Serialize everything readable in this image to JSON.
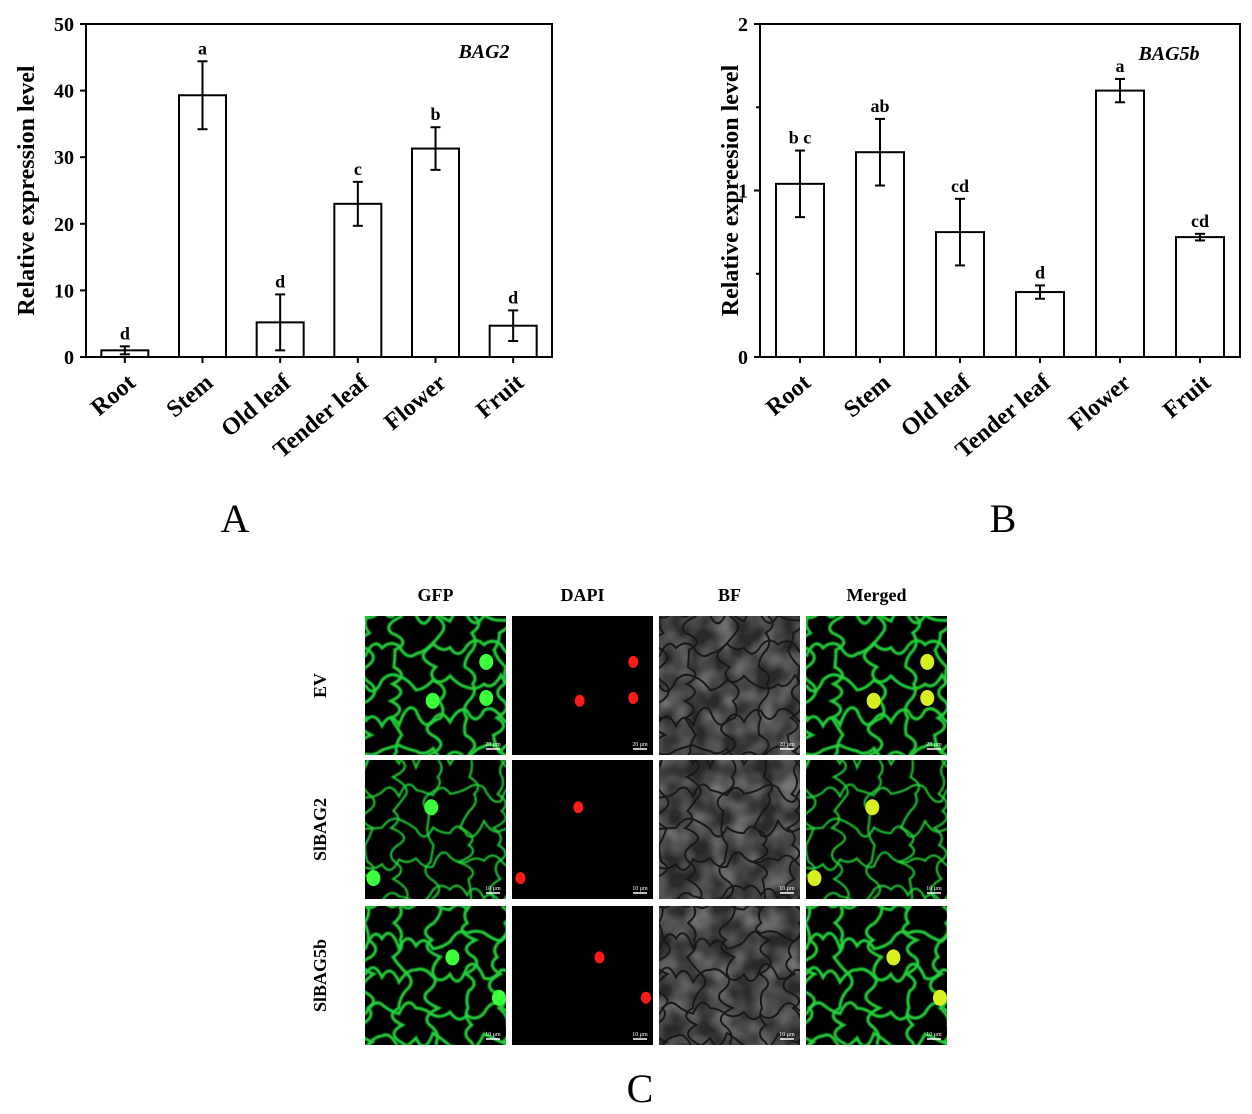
{
  "chart_data": [
    {
      "type": "bar",
      "panel_label": "A",
      "gene_label": "BAG2",
      "ylabel": "Relative expression level",
      "xlabel": "",
      "ylim": [
        0,
        50
      ],
      "yticks": [
        0,
        10,
        20,
        30,
        40,
        50
      ],
      "categories": [
        "Root",
        "Stem",
        "Old leaf",
        "Tender leaf",
        "Flower",
        "Fruit"
      ],
      "values": [
        1.0,
        39.3,
        5.2,
        23.0,
        31.3,
        4.7
      ],
      "errors": [
        0.6,
        5.1,
        4.2,
        3.3,
        3.2,
        2.3
      ],
      "letters": [
        "d",
        "a",
        "d",
        "c",
        "b",
        "d"
      ]
    },
    {
      "type": "bar",
      "panel_label": "B",
      "gene_label": "BAG5b",
      "ylabel": "Relative expreesion level",
      "xlabel": "",
      "ylim": [
        0,
        2
      ],
      "yticks": [
        0,
        1,
        2
      ],
      "categories": [
        "Root",
        "Stem",
        "Old leaf",
        "Tender leaf",
        "Flower",
        "Fruit"
      ],
      "values": [
        1.04,
        1.23,
        0.75,
        0.39,
        1.6,
        0.72
      ],
      "errors": [
        0.2,
        0.2,
        0.2,
        0.04,
        0.07,
        0.02
      ],
      "letters": [
        "b c",
        "ab",
        "cd",
        "d",
        "a",
        "cd"
      ]
    }
  ],
  "microscopy": {
    "panel_label": "C",
    "columns": [
      "GFP",
      "DAPI",
      "BF",
      "Merged"
    ],
    "rows": [
      {
        "label": "EV",
        "scale": "20 μm"
      },
      {
        "label": "SlBAG2",
        "scale": "10 μm"
      },
      {
        "label": "SlBAG5b",
        "scale": "10 μm"
      }
    ]
  }
}
